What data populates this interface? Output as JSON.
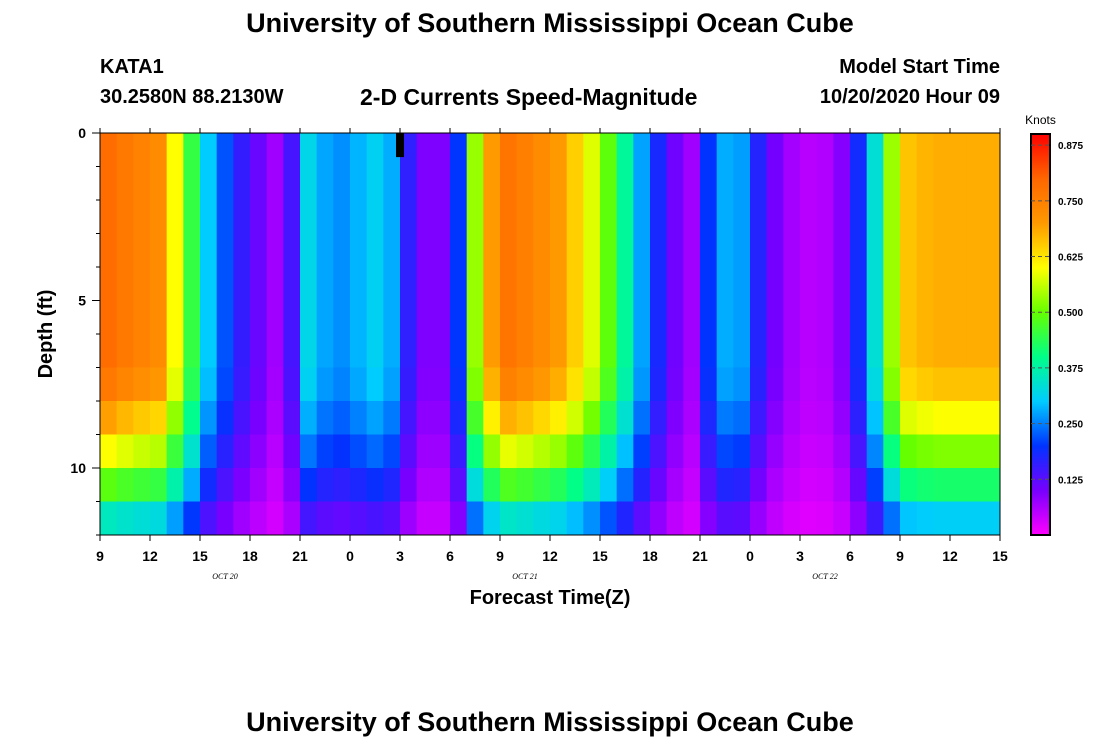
{
  "header": {
    "title": "University of Southern Mississippi Ocean Cube",
    "station": "KATA1",
    "coordinates": "30.2580N 88.2130W",
    "subtitle": "2-D Currents Speed-Magnitude",
    "start_label": "Model Start Time",
    "start_value": "10/20/2020 Hour 09"
  },
  "footer": {
    "title": "University of Southern Mississippi Ocean Cube"
  },
  "chart_data": {
    "type": "heatmap",
    "xlabel": "Forecast Time(Z)",
    "ylabel": "Depth (ft)",
    "x_tick_labels": [
      "9",
      "12",
      "15",
      "18",
      "21",
      "0",
      "3",
      "6",
      "9",
      "12",
      "15",
      "18",
      "21",
      "0",
      "3",
      "6",
      "9",
      "12",
      "15"
    ],
    "date_labels": [
      {
        "label": "OCT 20",
        "tick_index": 2.5
      },
      {
        "label": "OCT 21",
        "tick_index": 8.5
      },
      {
        "label": "OCT 22",
        "tick_index": 14.5
      }
    ],
    "y_ticks": [
      0,
      5,
      10
    ],
    "ylim": [
      0,
      12
    ],
    "depth_levels": [
      0.5,
      1.5,
      2.5,
      3.5,
      4.5,
      5.5,
      6.5,
      7.5,
      8.5,
      9.5,
      10.5,
      11.5
    ],
    "hours_per_tick": 3,
    "hours": 54,
    "profile": {
      "hour": [
        0,
        2,
        4,
        4.5,
        5.5,
        6.5,
        8,
        9.3,
        10.5,
        11.2,
        11.8,
        12,
        12.5,
        13,
        14,
        14.5,
        16.5,
        17.5,
        18,
        19,
        20,
        21,
        21.8,
        22.3,
        24,
        25.5,
        27.5,
        29,
        31,
        32,
        33.5,
        35,
        35.5,
        36.5,
        38,
        39,
        40,
        42,
        44,
        45,
        46,
        47,
        48,
        50,
        52,
        54
      ],
      "speed": [
        0.8,
        0.75,
        0.72,
        0.6,
        0.45,
        0.3,
        0.18,
        0.12,
        0.07,
        0.1,
        0.18,
        0.22,
        0.32,
        0.3,
        0.25,
        0.26,
        0.31,
        0.28,
        0.2,
        0.12,
        0.07,
        0.12,
        0.25,
        0.5,
        0.78,
        0.75,
        0.7,
        0.62,
        0.45,
        0.32,
        0.18,
        0.07,
        0.07,
        0.2,
        0.32,
        0.22,
        0.12,
        0.05,
        0.06,
        0.12,
        0.25,
        0.42,
        0.65,
        0.68,
        0.68,
        0.68
      ]
    },
    "bottom_weakening": [
      1.0,
      1.0,
      1.0,
      1.0,
      1.0,
      1.0,
      1.0,
      0.97,
      0.88,
      0.76,
      0.62,
      0.45
    ],
    "point_marker": {
      "hour": 18,
      "depth": 0.3
    },
    "colorbar": {
      "label": "Knots",
      "range": [
        0,
        0.9
      ],
      "ticks": [
        "0.125",
        "0.250",
        "0.375",
        "0.500",
        "0.625",
        "0.750",
        "0.875"
      ],
      "stops": [
        "#ff00ff",
        "#7700ff",
        "#0033ff",
        "#00ccff",
        "#00ff88",
        "#66ff00",
        "#ffff00",
        "#ff9900",
        "#ff6600",
        "#ff0000"
      ]
    }
  }
}
